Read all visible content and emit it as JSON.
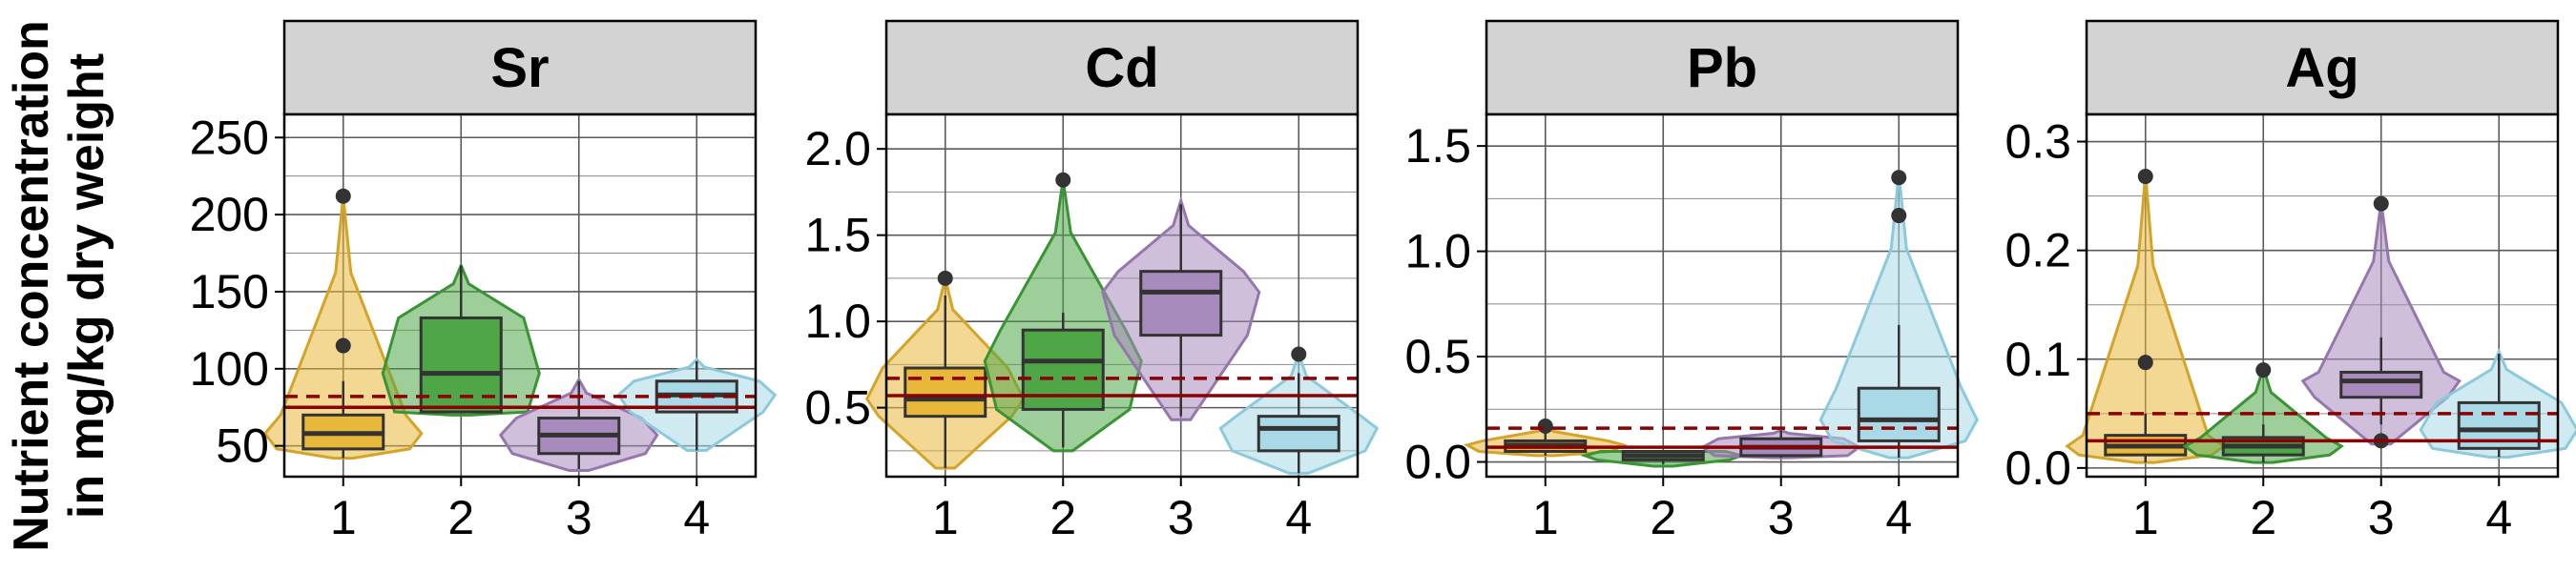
{
  "y_axis_title": {
    "line1": "Nutrient concentration",
    "line2": "in mg/kg dry weight"
  },
  "colors": {
    "group_fill": [
      "#e8b83a",
      "#4ea646",
      "#a88bbd",
      "#a9d8e6"
    ],
    "group_line": [
      "#d4a42a",
      "#3a9435",
      "#9577ad",
      "#8ccadb"
    ],
    "threshold_line": "#8b0000",
    "strip_bg": "#d3d3d3",
    "outlier": "#333333"
  },
  "chart_data": [
    {
      "type": "box+violin",
      "title": "Sr",
      "categories": [
        "1",
        "2",
        "3",
        "4"
      ],
      "ylim": [
        30,
        265
      ],
      "yticks": [
        50,
        100,
        150,
        200,
        250
      ],
      "threshold_solid": 75,
      "threshold_dashed": 82,
      "boxes": [
        {
          "group": "1",
          "q1": 48,
          "median": 58,
          "q3": 70,
          "whisker_low": 42,
          "whisker_high": 92,
          "outliers": [
            115,
            212
          ],
          "violin_min": 42,
          "violin_max": 212
        },
        {
          "group": "2",
          "q1": 72,
          "median": 97,
          "q3": 133,
          "whisker_low": 72,
          "whisker_high": 167,
          "outliers": [],
          "violin_min": 70,
          "violin_max": 167
        },
        {
          "group": "3",
          "q1": 45,
          "median": 57,
          "q3": 68,
          "whisker_low": 35,
          "whisker_high": 92,
          "outliers": [],
          "violin_min": 34,
          "violin_max": 93
        },
        {
          "group": "4",
          "q1": 72,
          "median": 83,
          "q3": 92,
          "whisker_low": 47,
          "whisker_high": 105,
          "outliers": [],
          "violin_min": 47,
          "violin_max": 106
        }
      ]
    },
    {
      "type": "box+violin",
      "title": "Cd",
      "categories": [
        "1",
        "2",
        "3",
        "4"
      ],
      "ylim": [
        0.1,
        2.2
      ],
      "yticks": [
        0.5,
        1.0,
        1.5,
        2.0
      ],
      "ytick_labels": [
        "0.5",
        "1.0",
        "1.5",
        "2.0"
      ],
      "threshold_solid": 0.57,
      "threshold_dashed": 0.67,
      "boxes": [
        {
          "group": "1",
          "q1": 0.45,
          "median": 0.55,
          "q3": 0.73,
          "whisker_low": 0.15,
          "whisker_high": 1.15,
          "outliers": [
            1.25
          ],
          "violin_min": 0.15,
          "violin_max": 1.25
        },
        {
          "group": "2",
          "q1": 0.49,
          "median": 0.77,
          "q3": 0.95,
          "whisker_low": 0.27,
          "whisker_high": 1.05,
          "outliers": [
            1.82
          ],
          "violin_min": 0.25,
          "violin_max": 1.82
        },
        {
          "group": "3",
          "q1": 0.92,
          "median": 1.17,
          "q3": 1.29,
          "whisker_low": 0.45,
          "whisker_high": 1.68,
          "outliers": [],
          "violin_min": 0.43,
          "violin_max": 1.7
        },
        {
          "group": "4",
          "q1": 0.25,
          "median": 0.38,
          "q3": 0.45,
          "whisker_low": 0.12,
          "whisker_high": 0.7,
          "outliers": [
            0.81
          ],
          "violin_min": 0.12,
          "violin_max": 0.81
        }
      ]
    },
    {
      "type": "box+violin",
      "title": "Pb",
      "categories": [
        "1",
        "2",
        "3",
        "4"
      ],
      "ylim": [
        -0.07,
        1.65
      ],
      "yticks": [
        0.0,
        0.5,
        1.0,
        1.5
      ],
      "ytick_labels": [
        "0.0",
        "0.5",
        "1.0",
        "1.5"
      ],
      "threshold_solid": 0.07,
      "threshold_dashed": 0.16,
      "boxes": [
        {
          "group": "1",
          "q1": 0.05,
          "median": 0.08,
          "q3": 0.1,
          "whisker_low": 0.03,
          "whisker_high": 0.15,
          "outliers": [
            0.17
          ],
          "violin_min": 0.03,
          "violin_max": 0.17
        },
        {
          "group": "2",
          "q1": 0.01,
          "median": 0.03,
          "q3": 0.05,
          "whisker_low": -0.01,
          "whisker_high": 0.05,
          "outliers": [],
          "violin_min": -0.02,
          "violin_max": 0.05
        },
        {
          "group": "3",
          "q1": 0.03,
          "median": 0.07,
          "q3": 0.11,
          "whisker_low": 0.02,
          "whisker_high": 0.15,
          "outliers": [],
          "violin_min": 0.02,
          "violin_max": 0.15
        },
        {
          "group": "4",
          "q1": 0.1,
          "median": 0.2,
          "q3": 0.35,
          "whisker_low": 0.02,
          "whisker_high": 0.65,
          "outliers": [
            1.17,
            1.35
          ],
          "violin_min": 0.02,
          "violin_max": 1.37
        }
      ]
    },
    {
      "type": "box+violin",
      "title": "Ag",
      "categories": [
        "1",
        "2",
        "3",
        "4"
      ],
      "ylim": [
        -0.008,
        0.325
      ],
      "yticks": [
        0.0,
        0.1,
        0.2,
        0.3
      ],
      "ytick_labels": [
        "0.0",
        "0.1",
        "0.2",
        "0.3"
      ],
      "threshold_solid": 0.025,
      "threshold_dashed": 0.05,
      "boxes": [
        {
          "group": "1",
          "q1": 0.012,
          "median": 0.02,
          "q3": 0.03,
          "whisker_low": 0.005,
          "whisker_high": 0.05,
          "outliers": [
            0.097,
            0.268
          ],
          "violin_min": 0.005,
          "violin_max": 0.27
        },
        {
          "group": "2",
          "q1": 0.012,
          "median": 0.02,
          "q3": 0.028,
          "whisker_low": 0.005,
          "whisker_high": 0.04,
          "outliers": [
            0.09
          ],
          "violin_min": 0.005,
          "violin_max": 0.092
        },
        {
          "group": "3",
          "q1": 0.065,
          "median": 0.08,
          "q3": 0.088,
          "whisker_low": 0.04,
          "whisker_high": 0.12,
          "outliers": [
            0.025,
            0.243
          ],
          "violin_min": 0.022,
          "violin_max": 0.245
        },
        {
          "group": "4",
          "q1": 0.018,
          "median": 0.035,
          "q3": 0.06,
          "whisker_low": 0.01,
          "whisker_high": 0.105,
          "outliers": [],
          "violin_min": 0.01,
          "violin_max": 0.107
        }
      ]
    }
  ]
}
